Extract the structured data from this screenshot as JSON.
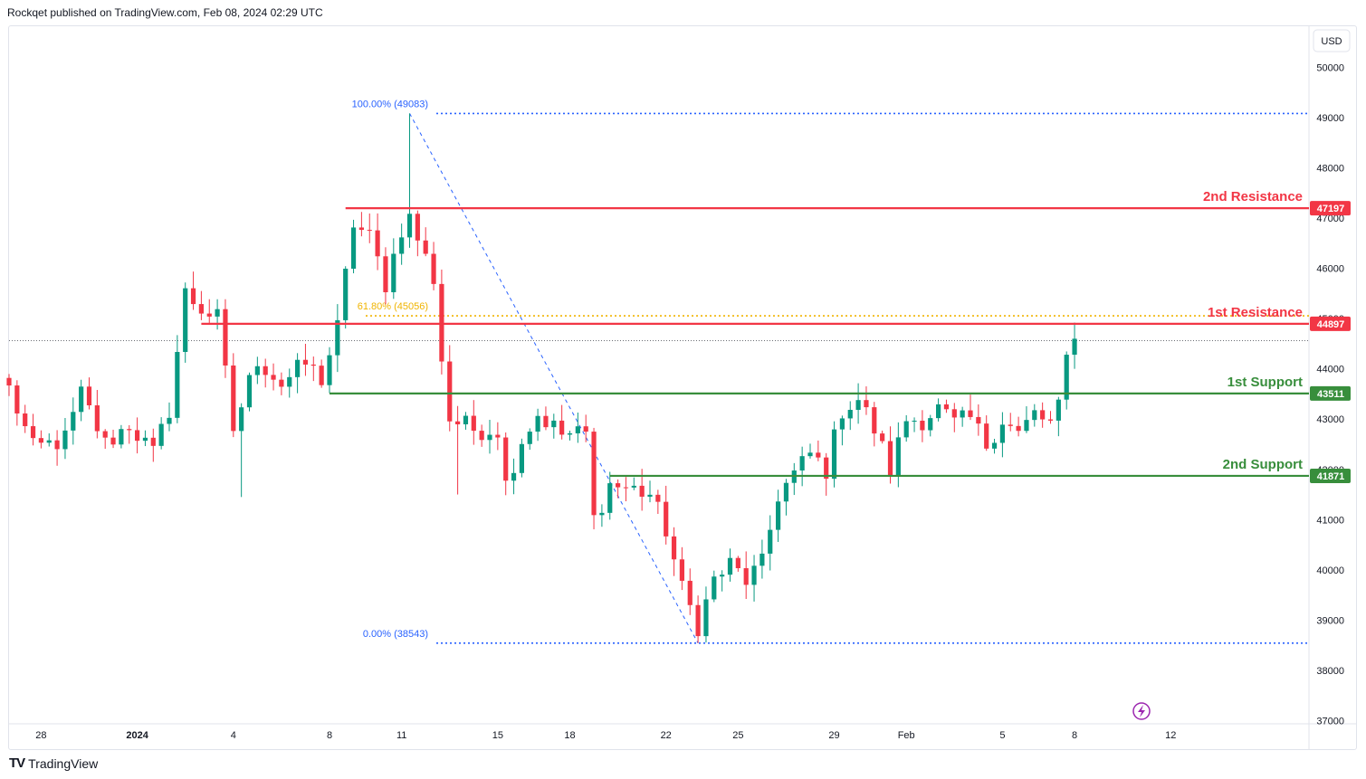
{
  "header": {
    "text": "Rockqet published on TradingView.com, Feb 08, 2024 02:29 UTC"
  },
  "footer": {
    "brand": "TradingView",
    "logo": "TV"
  },
  "currency": "USD",
  "colors": {
    "up": "#089981",
    "down": "#f23645",
    "resistance": "#f23645",
    "support": "#388e3c",
    "fib": "#2962ff",
    "fib_mid": "#f0b400",
    "lightning": "#9c27b0"
  },
  "chart_data": {
    "type": "candlestick",
    "ylim": [
      37000,
      50200
    ],
    "y_ticks": [
      37000,
      38000,
      39000,
      40000,
      41000,
      42000,
      43000,
      44000,
      45000,
      46000,
      47000,
      48000,
      49000,
      50000
    ],
    "x_ticks": [
      {
        "label": "28",
        "bar": 4
      },
      {
        "label": "2024",
        "bar": 16
      },
      {
        "label": "4",
        "bar": 28
      },
      {
        "label": "8",
        "bar": 40
      },
      {
        "label": "11",
        "bar": 49
      },
      {
        "label": "15",
        "bar": 61
      },
      {
        "label": "18",
        "bar": 70
      },
      {
        "label": "22",
        "bar": 82
      },
      {
        "label": "25",
        "bar": 91
      },
      {
        "label": "29",
        "bar": 103
      },
      {
        "label": "Feb",
        "bar": 112
      },
      {
        "label": "5",
        "bar": 124
      },
      {
        "label": "8",
        "bar": 133
      },
      {
        "label": "12",
        "bar": 145
      }
    ],
    "levels": [
      {
        "name": "2nd Resistance",
        "price": 47197,
        "kind": "resistance",
        "start_bar": 42
      },
      {
        "name": "1st Resistance",
        "price": 44897,
        "kind": "resistance",
        "start_bar": 24
      },
      {
        "name": "1st Support",
        "price": 43511,
        "kind": "support",
        "start_bar": 40
      },
      {
        "name": "2nd Support",
        "price": 41871,
        "kind": "support",
        "start_bar": 75
      }
    ],
    "fib": {
      "high": 49083,
      "low": 38543,
      "high_bar": 50,
      "low_bar": 86,
      "levels": [
        {
          "label": "100.00% (49083)",
          "price": 49083
        },
        {
          "label": "61.80% (45056)",
          "price": 45056
        },
        {
          "label": "0.00% (38543)",
          "price": 38543
        }
      ]
    },
    "last_price": 44560,
    "price_badges": [
      "47197",
      "44897",
      "43511",
      "41871"
    ],
    "anchors": [
      {
        "bar": 0,
        "price": 43600
      },
      {
        "bar": 3,
        "price": 42400
      },
      {
        "bar": 7,
        "price": 42600
      },
      {
        "bar": 9,
        "price": 43500
      },
      {
        "bar": 12,
        "price": 42500
      },
      {
        "bar": 15,
        "price": 42900
      },
      {
        "bar": 18,
        "price": 42300
      },
      {
        "bar": 20,
        "price": 43200
      },
      {
        "bar": 22,
        "price": 45500
      },
      {
        "bar": 24,
        "price": 45200
      },
      {
        "bar": 26,
        "price": 45000
      },
      {
        "bar": 28,
        "price": 42800
      },
      {
        "bar": 31,
        "price": 44200
      },
      {
        "bar": 34,
        "price": 43700
      },
      {
        "bar": 37,
        "price": 44100
      },
      {
        "bar": 39,
        "price": 43800
      },
      {
        "bar": 41,
        "price": 44800
      },
      {
        "bar": 43,
        "price": 46900
      },
      {
        "bar": 45,
        "price": 46600
      },
      {
        "bar": 47,
        "price": 45700
      },
      {
        "bar": 49,
        "price": 46800
      },
      {
        "bar": 50,
        "price": 47000
      },
      {
        "bar": 53,
        "price": 45800
      },
      {
        "bar": 54,
        "price": 44200
      },
      {
        "bar": 55,
        "price": 43000
      },
      {
        "bar": 58,
        "price": 42800
      },
      {
        "bar": 61,
        "price": 42800
      },
      {
        "bar": 62,
        "price": 41700
      },
      {
        "bar": 64,
        "price": 42600
      },
      {
        "bar": 66,
        "price": 43100
      },
      {
        "bar": 69,
        "price": 42700
      },
      {
        "bar": 72,
        "price": 42700
      },
      {
        "bar": 73,
        "price": 41000
      },
      {
        "bar": 75,
        "price": 41700
      },
      {
        "bar": 78,
        "price": 41600
      },
      {
        "bar": 80,
        "price": 41500
      },
      {
        "bar": 82,
        "price": 40800
      },
      {
        "bar": 84,
        "price": 39600
      },
      {
        "bar": 86,
        "price": 38900
      },
      {
        "bar": 88,
        "price": 39800
      },
      {
        "bar": 90,
        "price": 40100
      },
      {
        "bar": 92,
        "price": 39800
      },
      {
        "bar": 94,
        "price": 40100
      },
      {
        "bar": 96,
        "price": 41500
      },
      {
        "bar": 98,
        "price": 41900
      },
      {
        "bar": 100,
        "price": 42300
      },
      {
        "bar": 102,
        "price": 42000
      },
      {
        "bar": 104,
        "price": 43200
      },
      {
        "bar": 106,
        "price": 43400
      },
      {
        "bar": 108,
        "price": 42800
      },
      {
        "bar": 110,
        "price": 42000
      },
      {
        "bar": 112,
        "price": 43000
      },
      {
        "bar": 114,
        "price": 43000
      },
      {
        "bar": 116,
        "price": 43200
      },
      {
        "bar": 118,
        "price": 42900
      },
      {
        "bar": 120,
        "price": 43000
      },
      {
        "bar": 122,
        "price": 42500
      },
      {
        "bar": 124,
        "price": 43000
      },
      {
        "bar": 126,
        "price": 42700
      },
      {
        "bar": 128,
        "price": 43100
      },
      {
        "bar": 130,
        "price": 42900
      },
      {
        "bar": 131,
        "price": 43200
      },
      {
        "bar": 132,
        "price": 44200
      },
      {
        "bar": 133,
        "price": 44600
      }
    ]
  }
}
